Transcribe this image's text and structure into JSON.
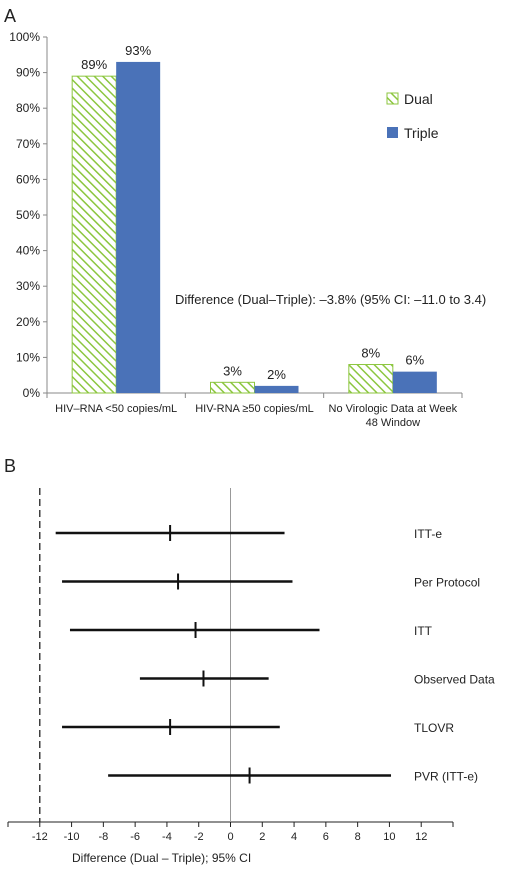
{
  "panel_a_label": "A",
  "panel_b_label": "B",
  "chart_data": [
    {
      "type": "bar",
      "categories": [
        "HIV–RNA <50 copies/mL",
        "HIV-RNA ≥50 copies/mL",
        "No Virologic Data at Week 48 Window"
      ],
      "category_lines": [
        [
          "HIV–RNA <50 copies/mL"
        ],
        [
          "HIV-RNA ≥50 copies/mL"
        ],
        [
          "No Virologic Data at Week",
          "48 Window"
        ]
      ],
      "series": [
        {
          "name": "Dual",
          "values": [
            89,
            3,
            8
          ],
          "labels": [
            "89%",
            "3%",
            "8%"
          ],
          "color": "#8cc63f",
          "pattern": "diagonal-hatch"
        },
        {
          "name": "Triple",
          "values": [
            93,
            2,
            6
          ],
          "labels": [
            "93%",
            "2%",
            "6%"
          ],
          "color": "#4a72b8",
          "pattern": "solid"
        }
      ],
      "yticks": [
        "0%",
        "10%",
        "20%",
        "30%",
        "40%",
        "50%",
        "60%",
        "70%",
        "80%",
        "90%",
        "100%"
      ],
      "ylim": [
        0,
        100
      ],
      "annotation": "Difference (Dual–Triple): –3.8% (95% CI: –11.0 to 3.4)",
      "legend_position": "right",
      "grid": false
    },
    {
      "type": "forest",
      "xlabel": "Difference (Dual – Triple); 95% CI",
      "xlim": [
        -14,
        14
      ],
      "xticks": [
        -12,
        -10,
        -8,
        -6,
        -4,
        -2,
        0,
        2,
        4,
        6,
        8,
        10,
        12
      ],
      "reference_line": -12,
      "zero_line": 0,
      "rows": [
        {
          "label": "ITT-e",
          "estimate": -3.8,
          "lower": -11.0,
          "upper": 3.4
        },
        {
          "label": "Per Protocol",
          "estimate": -3.3,
          "lower": -10.6,
          "upper": 3.9
        },
        {
          "label": "ITT",
          "estimate": -2.2,
          "lower": -10.1,
          "upper": 5.6
        },
        {
          "label": "Observed Data",
          "estimate": -1.7,
          "lower": -5.7,
          "upper": 2.4
        },
        {
          "label": "TLOVR",
          "estimate": -3.8,
          "lower": -10.6,
          "upper": 3.1
        },
        {
          "label": "PVR (ITT-e)",
          "estimate": 1.2,
          "lower": -7.7,
          "upper": 10.1
        }
      ]
    }
  ]
}
